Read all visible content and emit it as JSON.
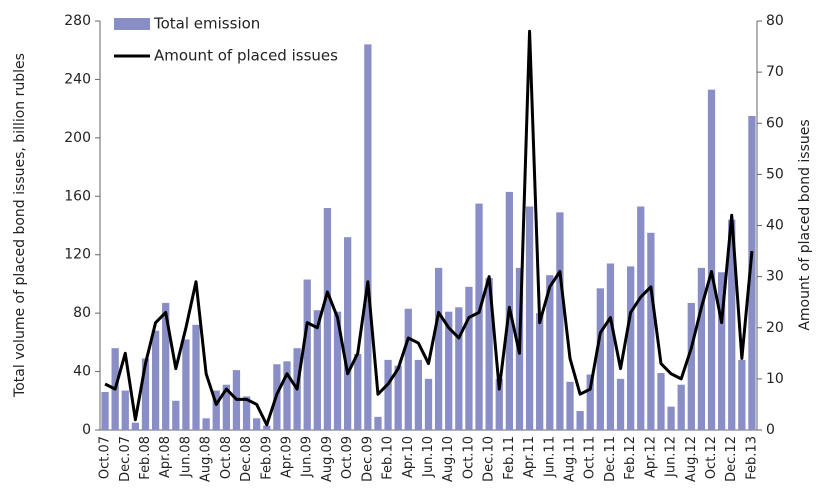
{
  "chart_data": {
    "type": "bar",
    "y_label": "Total volume of placed bond issues, billion rubles",
    "y2_label": "Amount of placed bond issues",
    "categories": [
      "Oct.07",
      null,
      "Dec.07",
      null,
      "Feb.08",
      null,
      "Apr.08",
      null,
      "Jun.08",
      null,
      "Aug.08",
      null,
      "Oct.08",
      null,
      "Dec.08",
      null,
      "Feb.09",
      null,
      "Apr.09",
      null,
      "Jun.09",
      null,
      "Aug.09",
      null,
      "Oct.09",
      null,
      "Dec.09",
      null,
      "Feb.10",
      null,
      "Apr.10",
      null,
      "Jun.10",
      null,
      "Aug.10",
      null,
      "Oct.10",
      null,
      "Dec.10",
      null,
      "Feb.11",
      null,
      "Apr.11",
      null,
      "Jun.11",
      null,
      "Aug.11",
      null,
      "Oct.11",
      null,
      "Dec.11",
      null,
      "Feb.12",
      null,
      "Apr.12",
      null,
      "Jun.12",
      null,
      "Aug.12",
      null,
      "Oct.12",
      null,
      "Dec.12",
      null,
      "Feb.13"
    ],
    "series": [
      {
        "name": "Total emission",
        "type": "bar",
        "color": "#8a8ec6",
        "values": [
          26,
          56,
          27,
          5,
          49,
          68,
          87,
          20,
          62,
          72,
          8,
          27,
          31,
          41,
          23,
          8,
          3,
          45,
          47,
          56,
          103,
          82,
          152,
          81,
          132,
          52,
          264,
          9,
          48,
          44,
          83,
          48,
          35,
          111,
          81,
          84,
          98,
          155,
          104,
          35,
          163,
          111,
          153,
          80,
          106,
          149,
          33,
          13,
          38,
          97,
          114,
          35,
          112,
          153,
          135,
          39,
          16,
          31,
          87,
          111,
          233,
          108,
          144,
          48,
          215
        ]
      },
      {
        "name": "Amount of placed issues",
        "type": "line",
        "color": "#000000",
        "axis": "y2",
        "values": [
          9,
          8,
          15,
          2,
          13,
          21,
          23,
          12,
          20,
          29,
          11,
          5,
          8,
          6,
          6,
          5,
          1,
          7,
          11,
          8,
          21,
          20,
          27,
          22,
          11,
          15,
          29,
          7,
          9,
          12,
          18,
          17,
          13,
          23,
          20,
          18,
          22,
          23,
          30,
          8,
          24,
          15,
          78,
          21,
          28,
          31,
          14,
          7,
          8,
          19,
          22,
          12,
          23,
          26,
          28,
          13,
          11,
          10,
          16,
          24,
          31,
          21,
          42,
          14,
          35
        ]
      }
    ],
    "ylim": [
      0,
      280
    ],
    "yticks": [
      0,
      40,
      80,
      120,
      160,
      200,
      240,
      280
    ],
    "y2lim": [
      0,
      80
    ],
    "y2ticks": [
      0,
      10,
      20,
      30,
      40,
      50,
      60,
      70,
      80
    ],
    "legend": "upper left"
  }
}
